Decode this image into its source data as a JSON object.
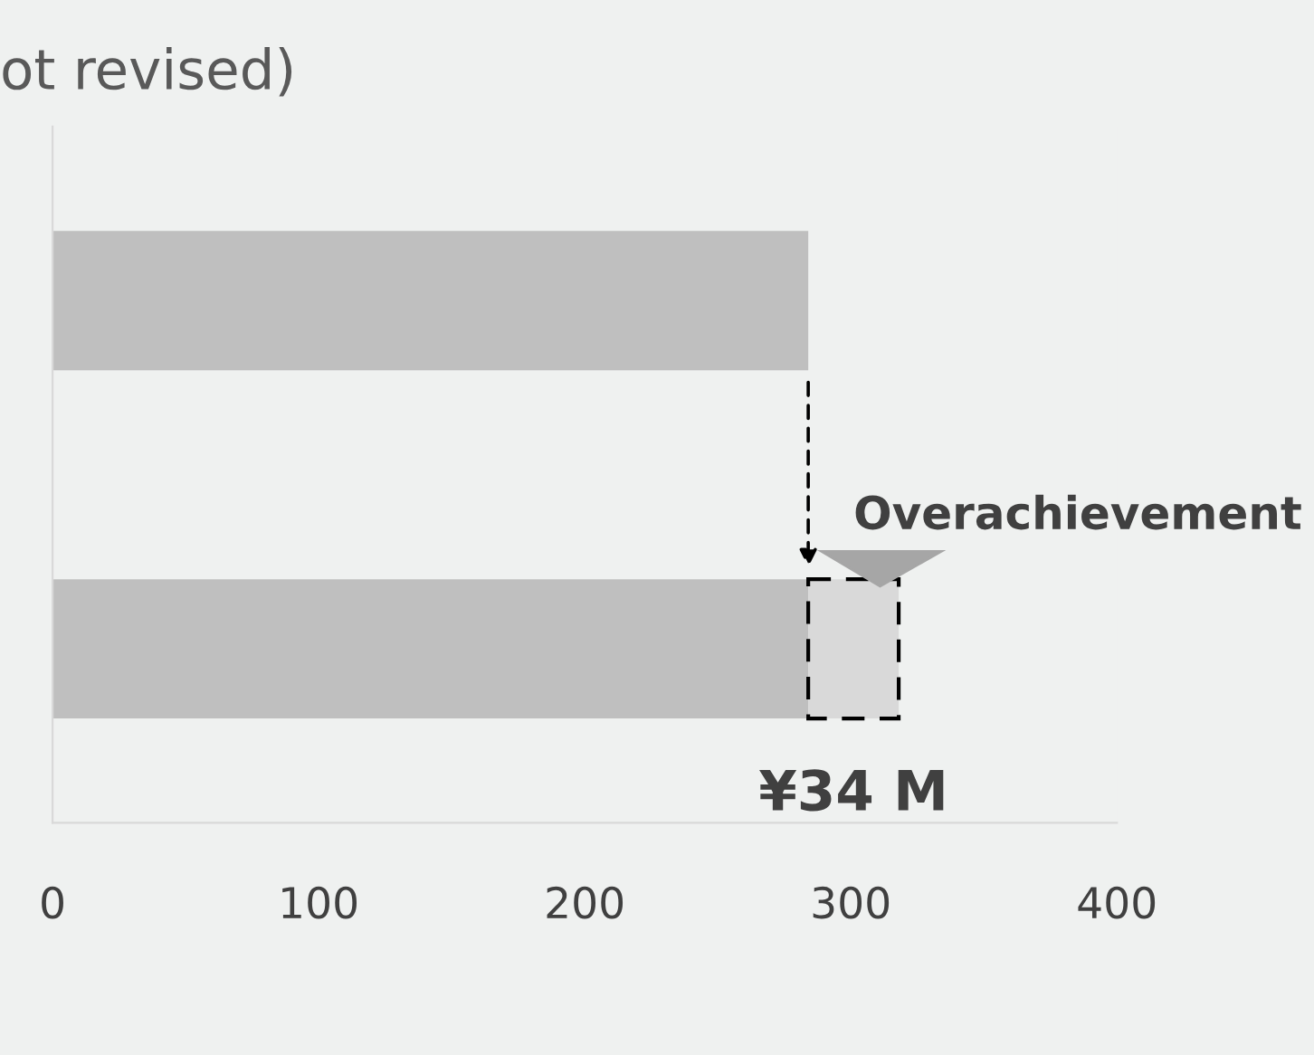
{
  "chart_data": {
    "type": "bar",
    "orientation": "horizontal",
    "stacked": true,
    "title": "ot revised)",
    "categories": [
      null,
      null
    ],
    "series": [
      {
        "color": "#bfbfbf",
        "values": [
          284,
          284
        ]
      },
      {
        "color": "#d9d9d9",
        "values": [
          null,
          34
        ],
        "line_style": "dashed"
      }
    ],
    "xlim": [
      0,
      400
    ],
    "xticks": [
      0,
      100,
      200,
      300,
      400
    ],
    "grid": false,
    "annotations": [
      "Overachievement",
      "¥34 M"
    ]
  }
}
